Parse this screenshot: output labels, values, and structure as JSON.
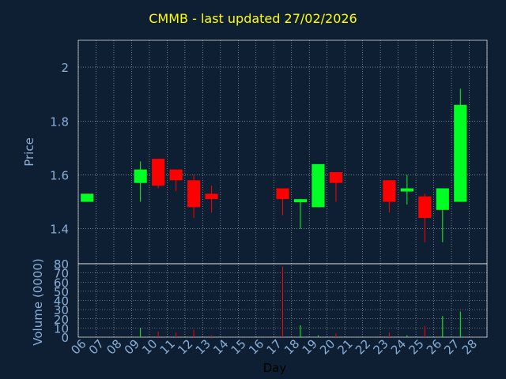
{
  "chart_data": [
    {
      "type": "candlestick",
      "title": "CMMB - last updated 27/02/2026",
      "xlabel": "",
      "ylabel": "Price",
      "ylim": [
        1.27,
        2.1
      ],
      "yticks": [
        1.4,
        1.6,
        1.8,
        2
      ],
      "ytick_labels": [
        "1.4",
        "1.6",
        "1.8",
        "2"
      ],
      "grid": true,
      "candles": [
        {
          "day": 6,
          "open": 1.5,
          "high": 1.53,
          "low": 1.5,
          "close": 1.53
        },
        {
          "day": 9,
          "open": 1.57,
          "high": 1.65,
          "low": 1.5,
          "close": 1.62
        },
        {
          "day": 10,
          "open": 1.66,
          "high": 1.66,
          "low": 1.55,
          "close": 1.56
        },
        {
          "day": 11,
          "open": 1.62,
          "high": 1.62,
          "low": 1.54,
          "close": 1.58
        },
        {
          "day": 12,
          "open": 1.58,
          "high": 1.6,
          "low": 1.44,
          "close": 1.48
        },
        {
          "day": 13,
          "open": 1.53,
          "high": 1.56,
          "low": 1.46,
          "close": 1.51
        },
        {
          "day": 17,
          "open": 1.55,
          "high": 1.55,
          "low": 1.45,
          "close": 1.51
        },
        {
          "day": 18,
          "open": 1.5,
          "high": 1.51,
          "low": 1.4,
          "close": 1.51
        },
        {
          "day": 19,
          "open": 1.48,
          "high": 1.64,
          "low": 1.48,
          "close": 1.64
        },
        {
          "day": 20,
          "open": 1.61,
          "high": 1.61,
          "low": 1.5,
          "close": 1.57
        },
        {
          "day": 23,
          "open": 1.58,
          "high": 1.58,
          "low": 1.46,
          "close": 1.5
        },
        {
          "day": 24,
          "open": 1.54,
          "high": 1.6,
          "low": 1.49,
          "close": 1.55
        },
        {
          "day": 25,
          "open": 1.52,
          "high": 1.53,
          "low": 1.35,
          "close": 1.44
        },
        {
          "day": 26,
          "open": 1.47,
          "high": 1.55,
          "low": 1.35,
          "close": 1.55
        },
        {
          "day": 27,
          "open": 1.5,
          "high": 1.92,
          "low": 1.5,
          "close": 1.86
        }
      ]
    },
    {
      "type": "bar",
      "title": "",
      "xlabel": "Day",
      "ylabel": "Volume (0000)",
      "ylim": [
        0,
        80
      ],
      "yticks": [
        0,
        10,
        20,
        30,
        40,
        50,
        60,
        70,
        80
      ],
      "ytick_labels": [
        "0",
        "10",
        "20",
        "30",
        "40",
        "50",
        "60",
        "70",
        "80"
      ],
      "x_categories": [
        "06",
        "07",
        "08",
        "09",
        "10",
        "11",
        "12",
        "13",
        "14",
        "15",
        "16",
        "17",
        "18",
        "19",
        "20",
        "21",
        "22",
        "23",
        "24",
        "25",
        "26",
        "27",
        "28"
      ],
      "grid": true,
      "volumes": [
        {
          "day": 6,
          "value": 0.5,
          "direction": "up"
        },
        {
          "day": 9,
          "value": 10,
          "direction": "up"
        },
        {
          "day": 10,
          "value": 6,
          "direction": "down"
        },
        {
          "day": 11,
          "value": 5,
          "direction": "down"
        },
        {
          "day": 12,
          "value": 8,
          "direction": "down"
        },
        {
          "day": 13,
          "value": 2,
          "direction": "down"
        },
        {
          "day": 17,
          "value": 77,
          "direction": "down"
        },
        {
          "day": 18,
          "value": 13,
          "direction": "up"
        },
        {
          "day": 19,
          "value": 2,
          "direction": "up"
        },
        {
          "day": 20,
          "value": 4,
          "direction": "down"
        },
        {
          "day": 23,
          "value": 5,
          "direction": "down"
        },
        {
          "day": 24,
          "value": 2,
          "direction": "up"
        },
        {
          "day": 25,
          "value": 12,
          "direction": "down"
        },
        {
          "day": 26,
          "value": 23,
          "direction": "up"
        },
        {
          "day": 27,
          "value": 28,
          "direction": "up"
        }
      ]
    }
  ],
  "colors": {
    "background": "#0f1f33",
    "title": "#ffff00",
    "text": "#8aaed6",
    "axis": "#ffffff",
    "grid": "#ffffff",
    "up": "#00ff22",
    "down": "#ff0000"
  }
}
